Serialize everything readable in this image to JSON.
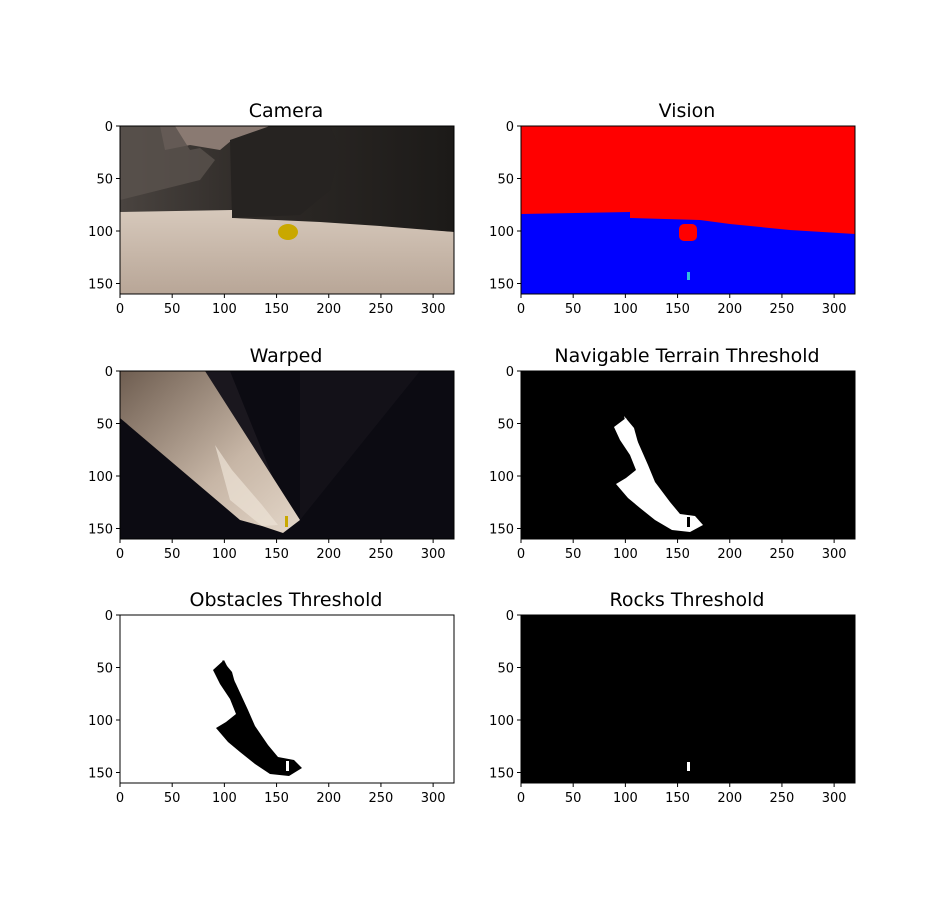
{
  "chart_data": [
    {
      "type": "image",
      "title": "Camera",
      "xlim": [
        0,
        320
      ],
      "ylim": [
        160,
        0
      ],
      "xticks": [
        0,
        50,
        100,
        150,
        200,
        250,
        300
      ],
      "yticks": [
        0,
        50,
        100,
        150
      ]
    },
    {
      "type": "image",
      "title": "Vision",
      "xlim": [
        0,
        320
      ],
      "ylim": [
        160,
        0
      ],
      "xticks": [
        0,
        50,
        100,
        150,
        200,
        250,
        300
      ],
      "yticks": [
        0,
        50,
        100,
        150
      ]
    },
    {
      "type": "image",
      "title": "Warped",
      "xlim": [
        0,
        320
      ],
      "ylim": [
        160,
        0
      ],
      "xticks": [
        0,
        50,
        100,
        150,
        200,
        250,
        300
      ],
      "yticks": [
        0,
        50,
        100,
        150
      ]
    },
    {
      "type": "image",
      "title": "Navigable Terrain Threshold",
      "xlim": [
        0,
        320
      ],
      "ylim": [
        160,
        0
      ],
      "xticks": [
        0,
        50,
        100,
        150,
        200,
        250,
        300
      ],
      "yticks": [
        0,
        50,
        100,
        150
      ]
    },
    {
      "type": "image",
      "title": "Obstacles Threshold",
      "xlim": [
        0,
        320
      ],
      "ylim": [
        160,
        0
      ],
      "xticks": [
        0,
        50,
        100,
        150,
        200,
        250,
        300
      ],
      "yticks": [
        0,
        50,
        100,
        150
      ]
    },
    {
      "type": "image",
      "title": "Rocks Threshold",
      "xlim": [
        0,
        320
      ],
      "ylim": [
        160,
        0
      ],
      "xticks": [
        0,
        50,
        100,
        150,
        200,
        250,
        300
      ],
      "yticks": [
        0,
        50,
        100,
        150
      ]
    }
  ],
  "colors": {
    "vision_obstacle": "#ff0000",
    "vision_navigable": "#0000ff",
    "vision_rock": "#ff0000",
    "threshold_on": "#ffffff",
    "threshold_off": "#000000",
    "sand": "#c9b9ab",
    "rock_sample": "#c9a800"
  }
}
